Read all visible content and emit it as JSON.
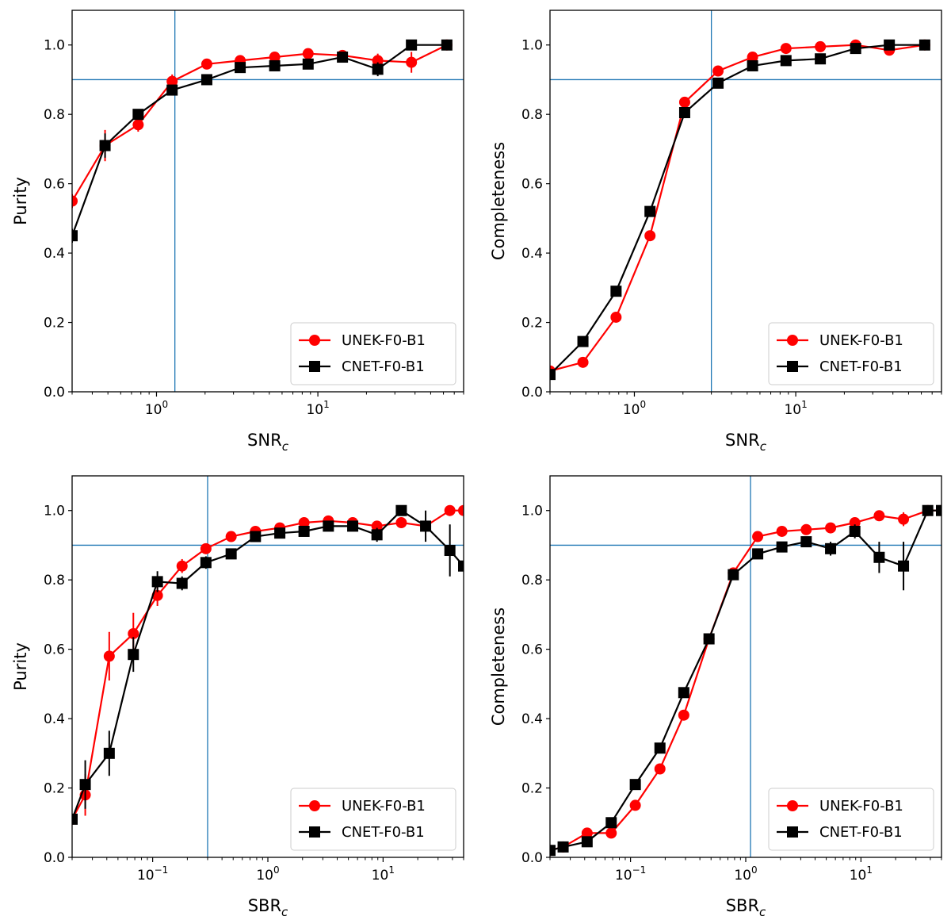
{
  "colors": {
    "series_a": "#ff0000",
    "series_b": "#000000",
    "reference": "#1f77b4",
    "frame": "#000000"
  },
  "series_names": [
    "UNEK-F0-B1",
    "CNET-F0-B1"
  ],
  "chart_data": [
    {
      "id": "purity-snr",
      "type": "line",
      "xscale": "log",
      "xlabel": "SNR",
      "xlabel_sub": "c",
      "ylabel": "Purity",
      "xlim": [
        0.3,
        80
      ],
      "ylim": [
        0,
        1.1
      ],
      "yticks": [
        "0.0",
        "0.2",
        "0.4",
        "0.6",
        "0.8",
        "1.0"
      ],
      "xtick_labels": [
        {
          "base": "10",
          "exp": "0",
          "value": 1
        },
        {
          "base": "10",
          "exp": "1",
          "value": 10
        }
      ],
      "vline": 1.3,
      "hline": 0.9,
      "legend_position": "lower-right",
      "series": [
        {
          "name": "UNEK-F0-B1",
          "marker": "circle",
          "x": [
            0.3,
            0.48,
            0.77,
            1.25,
            2.05,
            3.3,
            5.4,
            8.7,
            14.2,
            23.5,
            38,
            63
          ],
          "y": [
            0.55,
            0.71,
            0.77,
            0.895,
            0.945,
            0.955,
            0.965,
            0.975,
            0.97,
            0.955,
            0.95,
            1.0
          ],
          "err": [
            0.02,
            0.045,
            0.02,
            0.02,
            0.012,
            0.012,
            0.012,
            0.012,
            0.015,
            0.02,
            0.03,
            0.0
          ]
        },
        {
          "name": "CNET-F0-B1",
          "marker": "square",
          "x": [
            0.3,
            0.48,
            0.77,
            1.25,
            2.05,
            3.3,
            5.4,
            8.7,
            14.2,
            23.5,
            38,
            63
          ],
          "y": [
            0.45,
            0.71,
            0.8,
            0.87,
            0.9,
            0.935,
            0.94,
            0.945,
            0.965,
            0.93,
            1.0,
            1.0
          ],
          "err": [
            0.02,
            0.035,
            0.015,
            0.015,
            0.012,
            0.012,
            0.012,
            0.012,
            0.015,
            0.02,
            0.0,
            0.0
          ]
        }
      ]
    },
    {
      "id": "completeness-snr",
      "type": "line",
      "xscale": "log",
      "xlabel": "SNR",
      "xlabel_sub": "c",
      "ylabel": "Completeness",
      "xlim": [
        0.3,
        80
      ],
      "ylim": [
        0,
        1.1
      ],
      "yticks": [
        "0.0",
        "0.2",
        "0.4",
        "0.6",
        "0.8",
        "1.0"
      ],
      "xtick_labels": [
        {
          "base": "10",
          "exp": "0",
          "value": 1
        },
        {
          "base": "10",
          "exp": "1",
          "value": 10
        }
      ],
      "vline": 3.0,
      "hline": 0.9,
      "legend_position": "lower-right",
      "series": [
        {
          "name": "UNEK-F0-B1",
          "marker": "circle",
          "x": [
            0.3,
            0.48,
            0.77,
            1.25,
            2.05,
            3.3,
            5.4,
            8.7,
            14.2,
            23.5,
            38,
            63
          ],
          "y": [
            0.06,
            0.085,
            0.215,
            0.45,
            0.835,
            0.925,
            0.965,
            0.99,
            0.995,
            1.0,
            0.985,
            1.0
          ],
          "err": [
            0.01,
            0.01,
            0.012,
            0.015,
            0.015,
            0.012,
            0.01,
            0.008,
            0.008,
            0.008,
            0.012,
            0.0
          ]
        },
        {
          "name": "CNET-F0-B1",
          "marker": "square",
          "x": [
            0.3,
            0.48,
            0.77,
            1.25,
            2.05,
            3.3,
            5.4,
            8.7,
            14.2,
            23.5,
            38,
            63
          ],
          "y": [
            0.05,
            0.145,
            0.29,
            0.52,
            0.805,
            0.89,
            0.94,
            0.955,
            0.96,
            0.99,
            1.0,
            1.0
          ],
          "err": [
            0.01,
            0.012,
            0.012,
            0.015,
            0.015,
            0.012,
            0.01,
            0.01,
            0.01,
            0.008,
            0.0,
            0.0
          ]
        }
      ]
    },
    {
      "id": "purity-sbr",
      "type": "line",
      "xscale": "log",
      "xlabel": "SBR",
      "xlabel_sub": "c",
      "ylabel": "Purity",
      "xlim": [
        0.02,
        50
      ],
      "ylim": [
        0,
        1.1
      ],
      "yticks": [
        "0.0",
        "0.2",
        "0.4",
        "0.6",
        "0.8",
        "1.0"
      ],
      "xtick_labels": [
        {
          "base": "10",
          "exp": "−1",
          "value": 0.1
        },
        {
          "base": "10",
          "exp": "0",
          "value": 1
        },
        {
          "base": "10",
          "exp": "1",
          "value": 10
        }
      ],
      "vline": 0.3,
      "hline": 0.9,
      "legend_position": "lower-right",
      "series": [
        {
          "name": "UNEK-F0-B1",
          "marker": "circle",
          "x": [
            0.02,
            0.026,
            0.042,
            0.068,
            0.11,
            0.18,
            0.29,
            0.48,
            0.78,
            1.27,
            2.06,
            3.35,
            5.45,
            8.85,
            14.4,
            23.4,
            38,
            50
          ],
          "y": [
            0.11,
            0.18,
            0.58,
            0.645,
            0.755,
            0.84,
            0.89,
            0.925,
            0.94,
            0.95,
            0.965,
            0.97,
            0.965,
            0.955,
            0.965,
            0.955,
            1.0,
            1.0
          ],
          "err": [
            0.0,
            0.06,
            0.07,
            0.06,
            0.03,
            0.02,
            0.015,
            0.012,
            0.012,
            0.012,
            0.01,
            0.01,
            0.01,
            0.012,
            0.012,
            0.015,
            0.0,
            0.0
          ]
        },
        {
          "name": "CNET-F0-B1",
          "marker": "square",
          "x": [
            0.02,
            0.026,
            0.042,
            0.068,
            0.11,
            0.18,
            0.29,
            0.48,
            0.78,
            1.27,
            2.06,
            3.35,
            5.45,
            8.85,
            14.4,
            23.4,
            38,
            50
          ],
          "y": [
            0.11,
            0.21,
            0.3,
            0.585,
            0.795,
            0.79,
            0.85,
            0.875,
            0.925,
            0.935,
            0.94,
            0.955,
            0.955,
            0.93,
            1.0,
            0.955,
            0.885,
            0.84
          ],
          "err": [
            0.0,
            0.07,
            0.065,
            0.05,
            0.03,
            0.02,
            0.018,
            0.015,
            0.015,
            0.015,
            0.015,
            0.015,
            0.015,
            0.02,
            0.0,
            0.045,
            0.075,
            0.0
          ]
        }
      ]
    },
    {
      "id": "completeness-sbr",
      "type": "line",
      "xscale": "log",
      "xlabel": "SBR",
      "xlabel_sub": "c",
      "ylabel": "Completeness",
      "xlim": [
        0.02,
        50
      ],
      "ylim": [
        0,
        1.1
      ],
      "yticks": [
        "0.0",
        "0.2",
        "0.4",
        "0.6",
        "0.8",
        "1.0"
      ],
      "xtick_labels": [
        {
          "base": "10",
          "exp": "−1",
          "value": 0.1
        },
        {
          "base": "10",
          "exp": "0",
          "value": 1
        },
        {
          "base": "10",
          "exp": "1",
          "value": 10
        }
      ],
      "vline": 1.1,
      "hline": 0.9,
      "legend_position": "lower-right",
      "series": [
        {
          "name": "UNEK-F0-B1",
          "marker": "circle",
          "x": [
            0.02,
            0.026,
            0.042,
            0.068,
            0.11,
            0.18,
            0.29,
            0.48,
            0.78,
            1.27,
            2.06,
            3.35,
            5.45,
            8.85,
            14.4,
            23.4,
            38,
            50
          ],
          "y": [
            0.02,
            0.03,
            0.07,
            0.07,
            0.15,
            0.255,
            0.41,
            0.63,
            0.82,
            0.925,
            0.94,
            0.945,
            0.95,
            0.965,
            0.985,
            0.975,
            1.0,
            1.0
          ],
          "err": [
            0.0,
            0.005,
            0.008,
            0.008,
            0.01,
            0.012,
            0.012,
            0.012,
            0.012,
            0.012,
            0.01,
            0.01,
            0.012,
            0.012,
            0.012,
            0.02,
            0.0,
            0.0
          ]
        },
        {
          "name": "CNET-F0-B1",
          "marker": "square",
          "x": [
            0.02,
            0.026,
            0.042,
            0.068,
            0.11,
            0.18,
            0.29,
            0.48,
            0.78,
            1.27,
            2.06,
            3.35,
            5.45,
            8.85,
            14.4,
            23.4,
            38,
            50
          ],
          "y": [
            0.02,
            0.03,
            0.045,
            0.1,
            0.21,
            0.315,
            0.475,
            0.63,
            0.815,
            0.875,
            0.895,
            0.91,
            0.89,
            0.94,
            0.865,
            0.84,
            1.0,
            1.0
          ],
          "err": [
            0.0,
            0.005,
            0.008,
            0.01,
            0.012,
            0.012,
            0.012,
            0.015,
            0.015,
            0.015,
            0.015,
            0.015,
            0.02,
            0.02,
            0.045,
            0.07,
            0.0,
            0.0
          ]
        }
      ]
    }
  ]
}
